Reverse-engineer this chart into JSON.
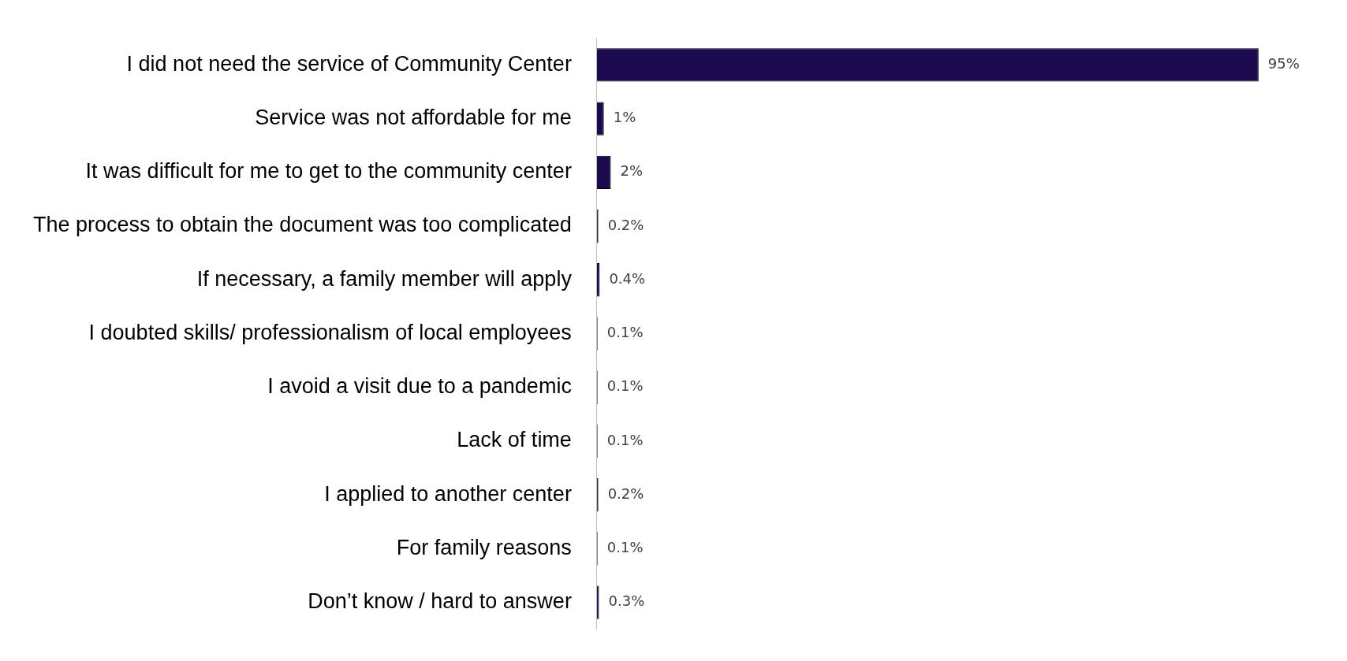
{
  "chart_data": {
    "type": "bar",
    "orientation": "horizontal",
    "categories": [
      "I did not need the service of Community Center",
      "Service was not affordable for me",
      "It was difficult for me to get to the community center",
      "The process to obtain the document was too complicated",
      "If necessary, a family member will apply",
      "I doubted skills/ professionalism of local employees",
      "I avoid a visit due to a pandemic",
      "Lack of time",
      "I applied to another center",
      "For family reasons",
      "Don’t know / hard to answer"
    ],
    "values": [
      95,
      1,
      2,
      0.2,
      0.4,
      0.1,
      0.1,
      0.1,
      0.2,
      0.1,
      0.3
    ],
    "value_labels": [
      "95%",
      "1%",
      "2%",
      "0.2%",
      "0.4%",
      "0.1%",
      "0.1%",
      "0.1%",
      "0.2%",
      "0.1%",
      "0.3%"
    ],
    "color": "#1b0a4d"
  }
}
